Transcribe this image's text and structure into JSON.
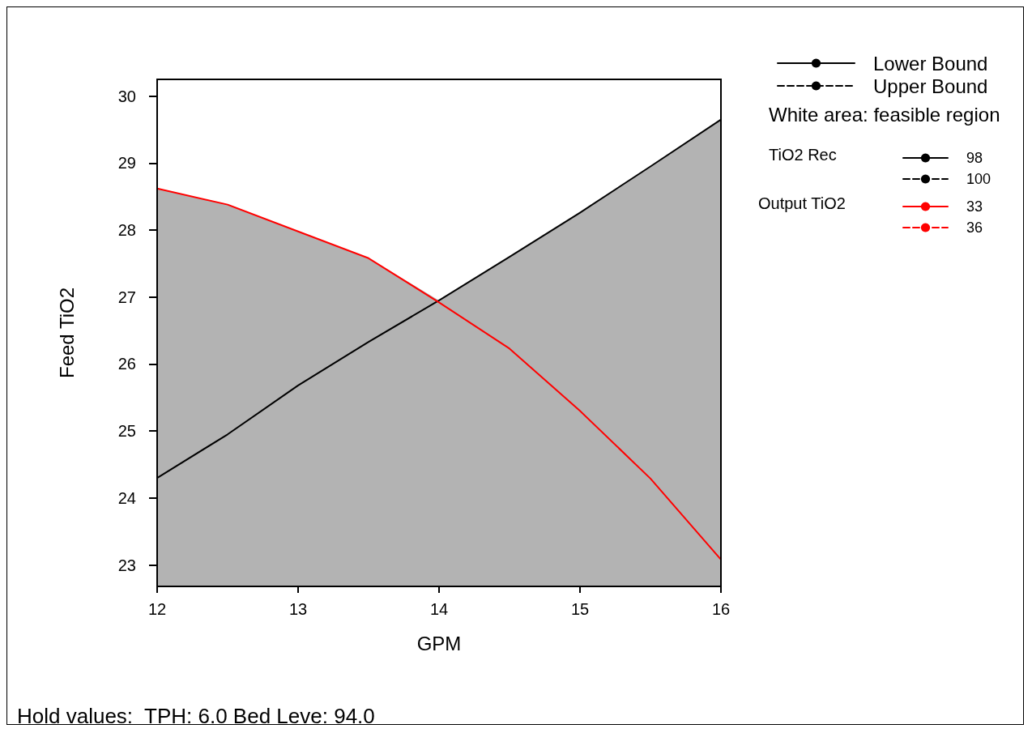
{
  "chart_data": {
    "type": "line",
    "xlabel": "GPM",
    "ylabel": "Feed TiO2",
    "x": [
      12,
      12.5,
      13,
      13.5,
      14,
      14.5,
      15,
      15.5,
      16
    ],
    "series": [
      {
        "type": "area",
        "color": "#b3b3b3",
        "values": [
          28.62,
          28.38,
          27.98,
          27.58,
          26.95,
          27.6,
          28.26,
          28.95,
          29.65
        ]
      },
      {
        "name": "Lower Bound",
        "color": "#000000",
        "line_style": "solid",
        "values": [
          null,
          null,
          null,
          null,
          null,
          null,
          null,
          null,
          null
        ]
      },
      {
        "name": "Upper Bound",
        "color": "#000000",
        "line_style": "dashed",
        "values": [
          null,
          null,
          null,
          null,
          null,
          null,
          null,
          null,
          null
        ]
      },
      {
        "name": "98",
        "color": "#000000",
        "line_style": "solid",
        "values": [
          24.3,
          24.95,
          25.68,
          26.33,
          26.95,
          27.6,
          28.26,
          28.95,
          29.65
        ]
      },
      {
        "name": "100",
        "color": "#000000",
        "line_style": "dashed",
        "values": [
          null,
          null,
          null,
          null,
          null,
          null,
          null,
          null,
          null
        ]
      },
      {
        "name": "33",
        "color": "#ff0000",
        "line_style": "solid",
        "values": [
          28.62,
          28.38,
          27.98,
          27.58,
          26.92,
          26.23,
          25.3,
          24.29,
          23.08
        ]
      },
      {
        "name": "36",
        "color": "#ff0000",
        "line_style": "dashed",
        "values": [
          null,
          null,
          null,
          null,
          null,
          null,
          null,
          null,
          null
        ]
      }
    ],
    "xlim": [
      12,
      16
    ],
    "xticks": [
      12,
      13,
      14,
      15,
      16
    ],
    "ylim": [
      22.68,
      30.25
    ],
    "yticks": [
      23,
      24,
      25,
      26,
      27,
      28,
      29,
      30
    ],
    "legend": "right",
    "marker": "none",
    "annotations": [
      "White area: feasible region",
      "TiO2 Rec",
      "Output TiO2",
      "Hold values:  TPH: 6.0 Bed Leve: 94.0"
    ]
  }
}
